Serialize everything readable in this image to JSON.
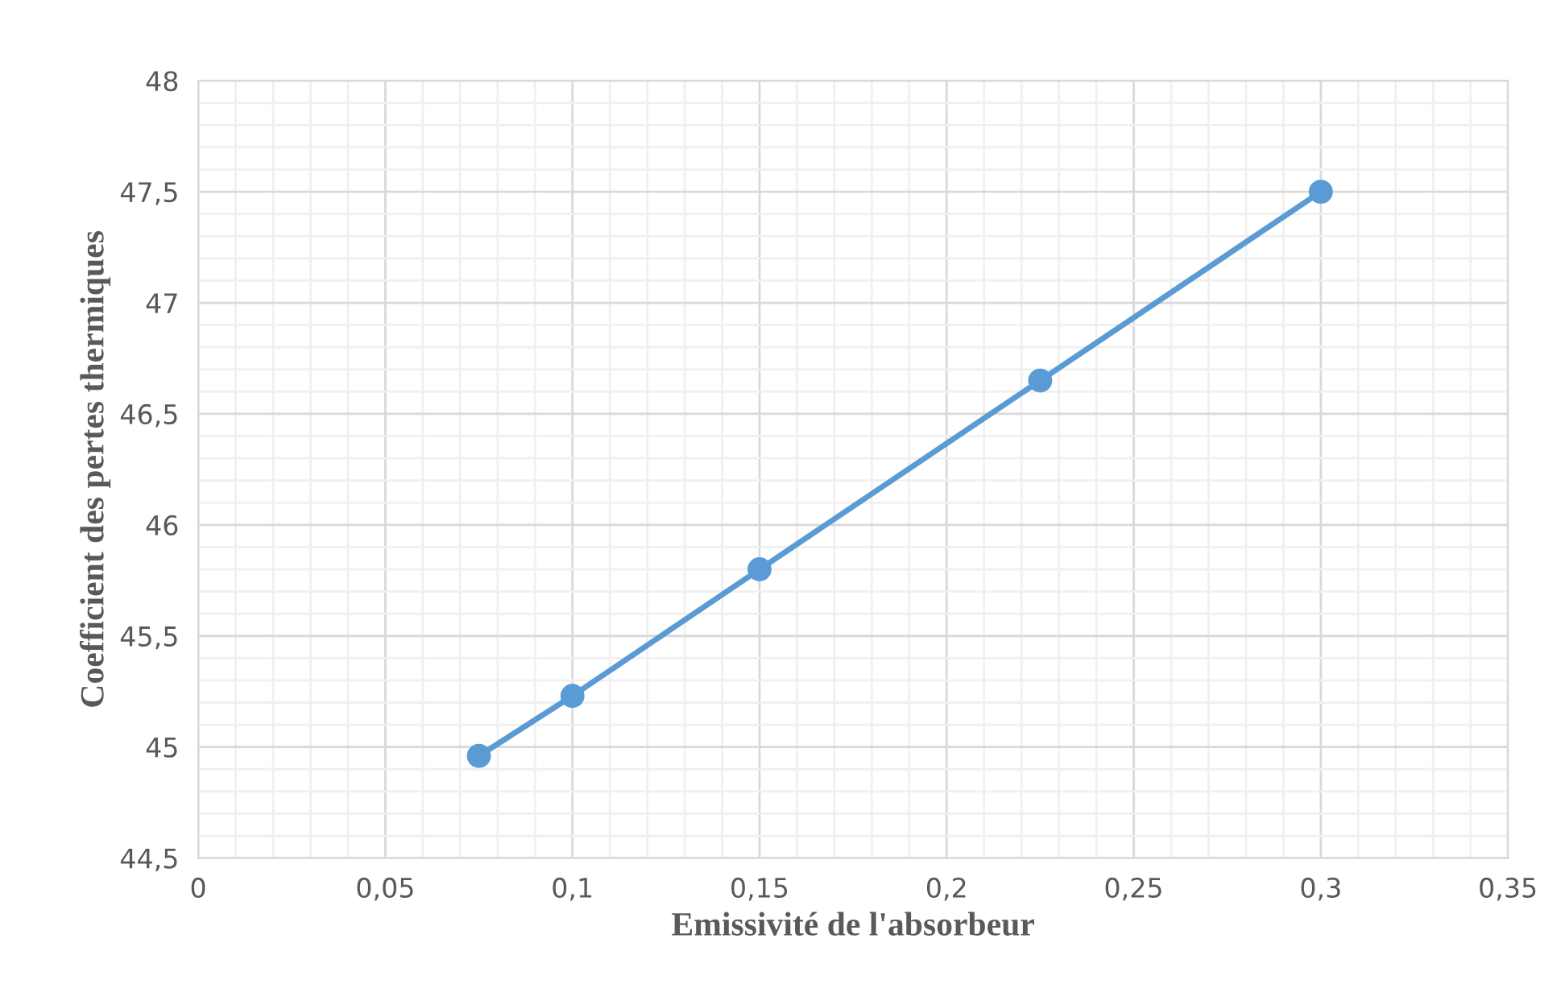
{
  "chart_data": {
    "type": "line",
    "xlabel": "Emissivité de l'absorbeur",
    "ylabel": "Coefficient des pertes thermiques",
    "series": [
      {
        "color": "#5b9bd5",
        "x": [
          0.075,
          0.1,
          0.15,
          0.225,
          0.3
        ],
        "values": [
          44.96,
          45.23,
          45.8,
          46.65,
          47.5
        ]
      }
    ],
    "xlim": [
      0,
      0.35
    ],
    "xticks": [
      0,
      {
        "value": 0.05,
        "label": "0,05"
      },
      {
        "value": 0.1,
        "label": "0,1"
      },
      {
        "value": 0.15,
        "label": "0,15"
      },
      {
        "value": 0.2,
        "label": "0,2"
      },
      {
        "value": 0.25,
        "label": "0,25"
      },
      {
        "value": 0.3,
        "label": "0,3"
      },
      {
        "value": 0.35,
        "label": "0,35"
      }
    ],
    "ylim": [
      44.5,
      48
    ],
    "yticks": [
      {
        "value": 44.5,
        "label": "44,5"
      },
      45,
      {
        "value": 45.5,
        "label": "45,5"
      },
      46,
      {
        "value": 46.5,
        "label": "46,5"
      },
      47,
      {
        "value": 47.5,
        "label": "47,5"
      },
      48
    ],
    "grid": true,
    "marker": "circle",
    "line_style": "solid",
    "legend": false
  }
}
